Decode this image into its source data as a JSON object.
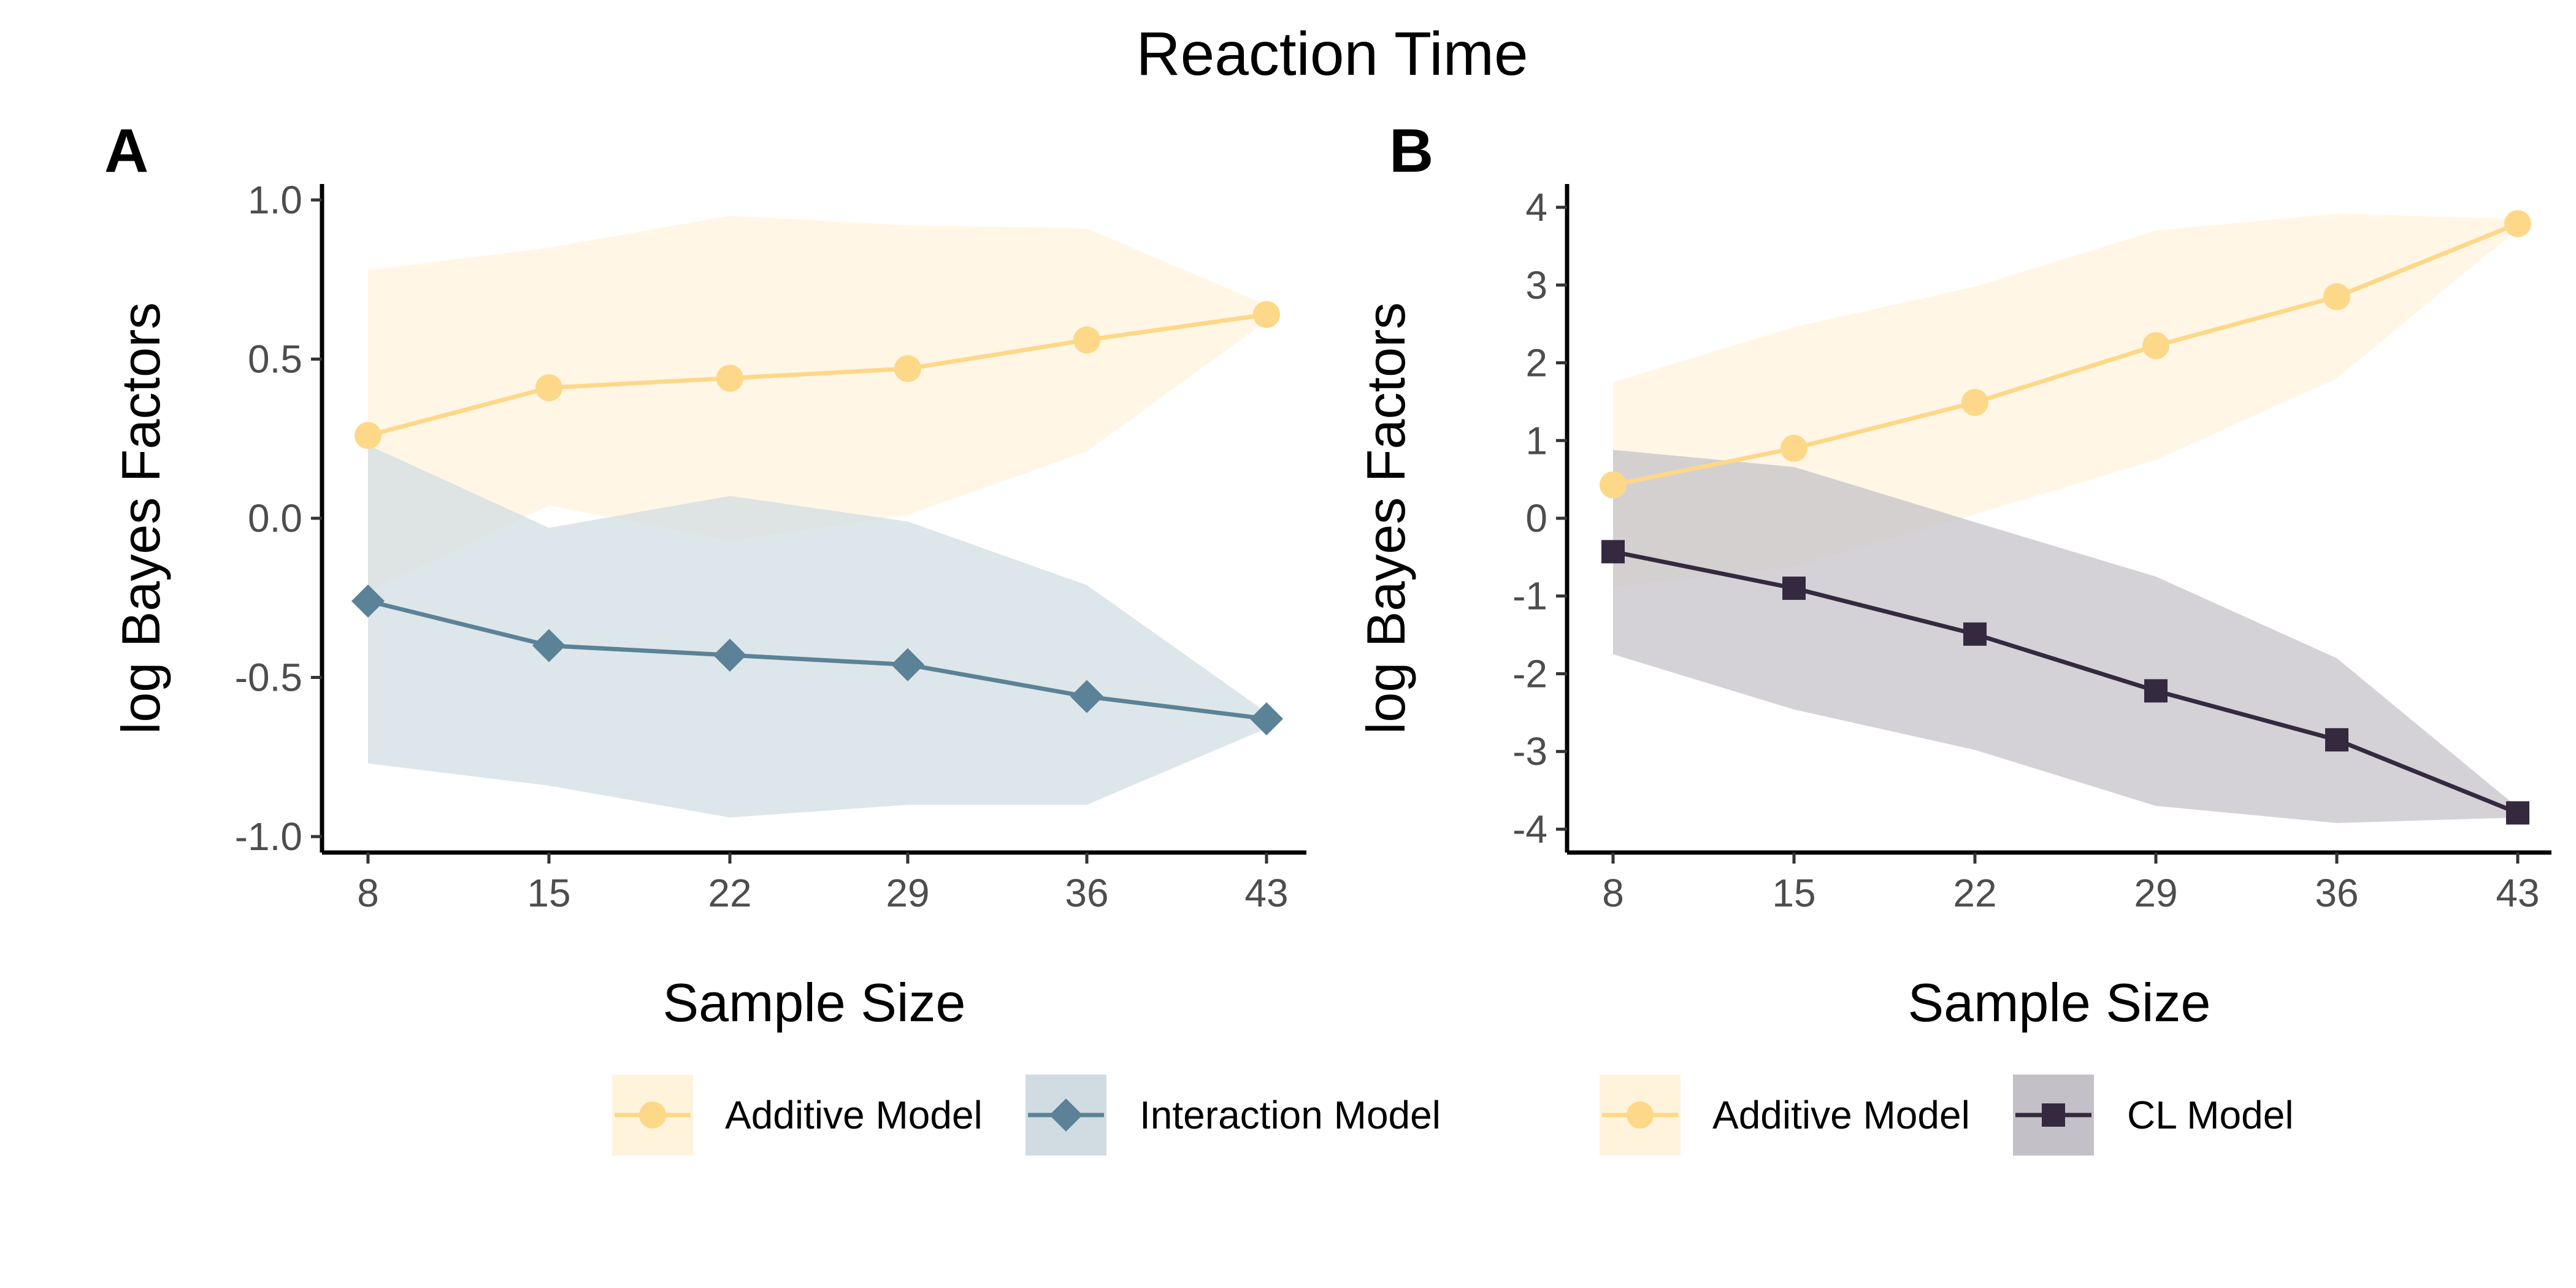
{
  "title": "Reaction Time",
  "chart_data": [
    {
      "type": "line",
      "panel_label": "A",
      "xlabel": "Sample Size",
      "ylabel": "log Bayes Factors",
      "x": [
        8,
        15,
        22,
        29,
        36,
        43
      ],
      "xticks": [
        "8",
        "15",
        "22",
        "29",
        "36",
        "43"
      ],
      "yticks": [
        "-1.0",
        "-0.5",
        "0.0",
        "0.5",
        "1.0"
      ],
      "ylim": [
        -1.05,
        1.05
      ],
      "grid": false,
      "legend_position": "bottom",
      "series": [
        {
          "name": "Additive Model",
          "marker": "circle",
          "color": "#FDD888",
          "band_color": "#FFF3DC",
          "values": [
            0.26,
            0.41,
            0.44,
            0.47,
            0.56,
            0.64
          ],
          "band_lower": [
            -0.23,
            0.04,
            -0.07,
            0.01,
            0.21,
            0.62
          ],
          "band_upper": [
            0.78,
            0.85,
            0.95,
            0.92,
            0.91,
            0.67
          ]
        },
        {
          "name": "Interaction Model",
          "marker": "diamond",
          "color": "#5B8296",
          "band_color": "#D0DCE2",
          "values": [
            -0.26,
            -0.4,
            -0.43,
            -0.46,
            -0.56,
            -0.63
          ],
          "band_lower": [
            -0.77,
            -0.84,
            -0.94,
            -0.9,
            -0.9,
            -0.66
          ],
          "band_upper": [
            0.23,
            -0.03,
            0.07,
            -0.01,
            -0.21,
            -0.61
          ]
        }
      ]
    },
    {
      "type": "line",
      "panel_label": "B",
      "xlabel": "Sample Size",
      "ylabel": "log Bayes Factors",
      "x": [
        8,
        15,
        22,
        29,
        36,
        43
      ],
      "xticks": [
        "8",
        "15",
        "22",
        "29",
        "36",
        "43"
      ],
      "yticks": [
        "-4",
        "-3",
        "-2",
        "-1",
        "0",
        "1",
        "2",
        "3",
        "4"
      ],
      "ylim": [
        -4.3,
        4.3
      ],
      "grid": false,
      "legend_position": "bottom",
      "series": [
        {
          "name": "Additive Model",
          "marker": "circle",
          "color": "#FDD888",
          "band_color": "#FFF3DC",
          "values": [
            0.43,
            0.9,
            1.49,
            2.22,
            2.85,
            3.79
          ],
          "band_lower": [
            -0.88,
            -0.62,
            0.05,
            0.75,
            1.8,
            3.72
          ],
          "band_upper": [
            1.75,
            2.46,
            2.98,
            3.7,
            3.92,
            3.85
          ]
        },
        {
          "name": "CL Model",
          "marker": "square",
          "color": "#35293F",
          "band_color": "#C4C0C8",
          "values": [
            -0.43,
            -0.9,
            -1.49,
            -2.22,
            -2.85,
            -3.79
          ],
          "band_lower": [
            -1.75,
            -2.46,
            -2.98,
            -3.7,
            -3.92,
            -3.85
          ],
          "band_upper": [
            0.88,
            0.66,
            -0.05,
            -0.75,
            -1.8,
            -3.72
          ]
        }
      ]
    }
  ]
}
